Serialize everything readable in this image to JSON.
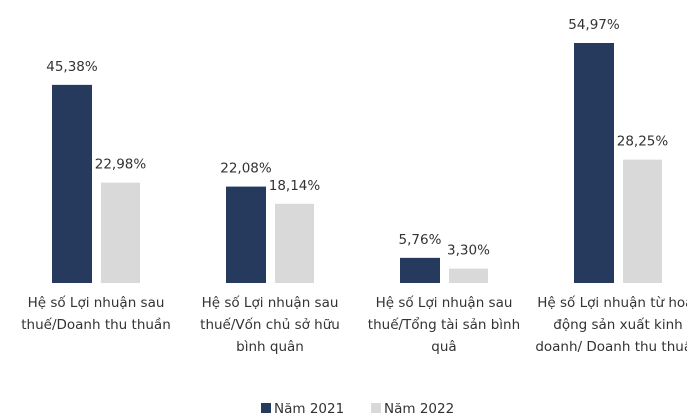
{
  "chart_data": {
    "type": "bar",
    "categories": [
      "Hệ số Lợi nhuận sau thuế/Doanh thu thuần",
      "Hệ số Lợi nhuận sau thuế/Vốn chủ sở hữu bình quân",
      "Hệ số Lợi nhuận sau thuế/Tổng tài sản bình quâ",
      "Hệ số Lợi nhuận từ hoạt động sản xuất kinh doanh/ Doanh thu thuần"
    ],
    "series": [
      {
        "name": "Năm 2021",
        "color": "#253a5c",
        "values": [
          45.38,
          22.08,
          5.76,
          54.97
        ],
        "value_labels": [
          "45,38%",
          "22,08%",
          "5,76%",
          "54,97%"
        ]
      },
      {
        "name": "Năm 2022",
        "color": "#d9d9d9",
        "values": [
          22.98,
          18.14,
          3.3,
          28.25
        ],
        "value_labels": [
          "22,98%",
          "18,14%",
          "3,30%",
          "28,25%"
        ]
      }
    ],
    "legend": "bottom"
  }
}
